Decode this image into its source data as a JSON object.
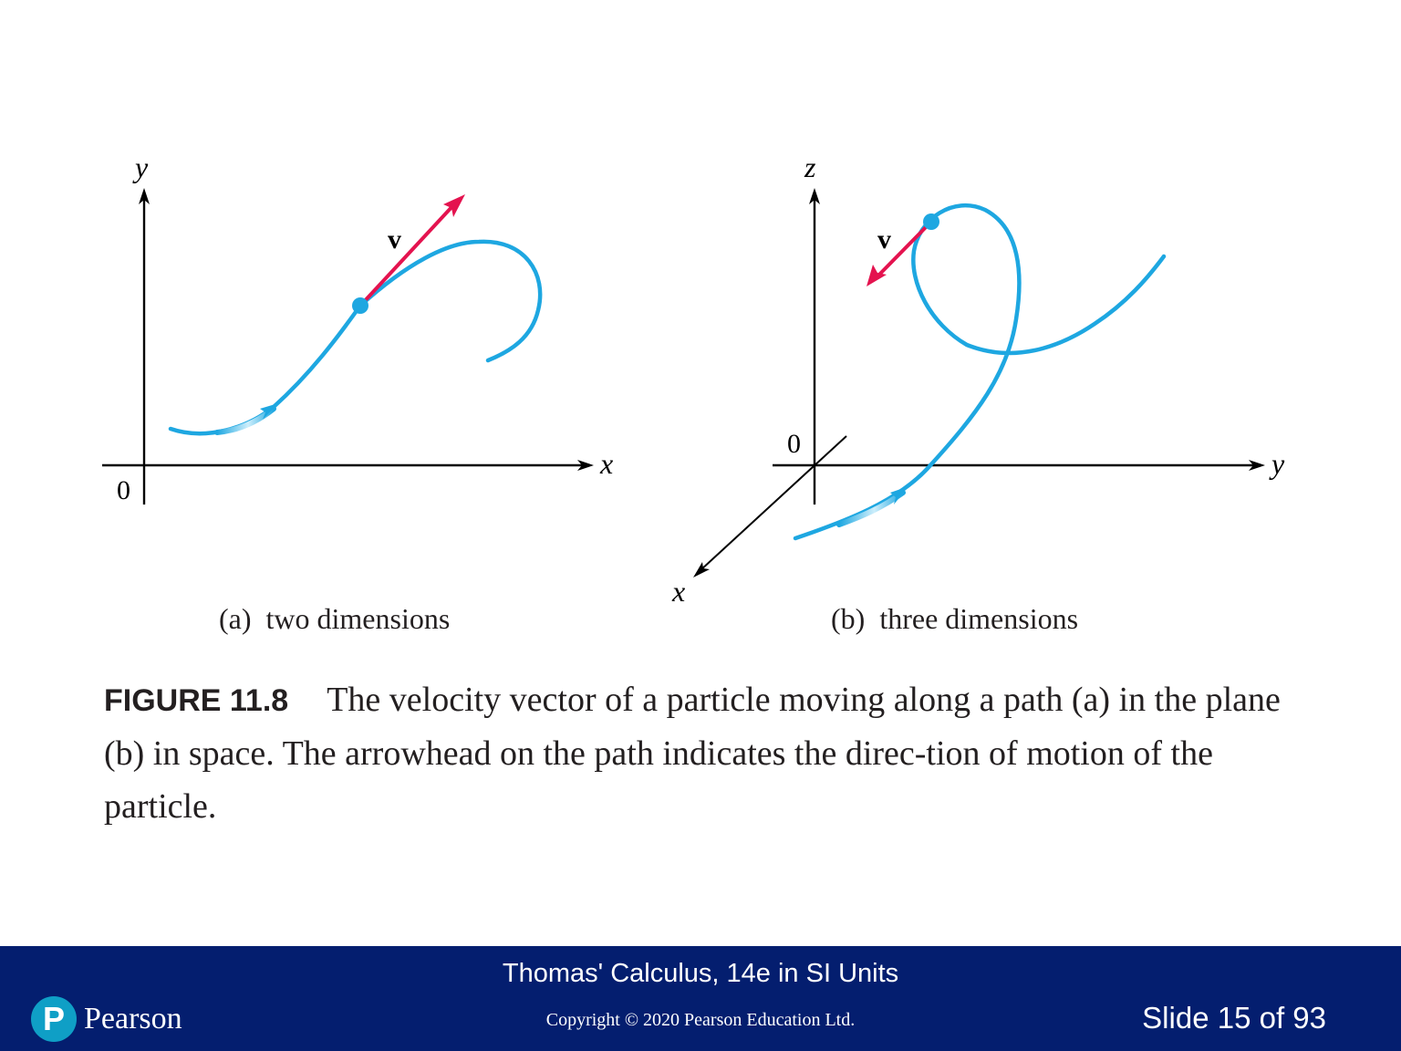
{
  "figure": {
    "panel_a": {
      "y_axis_label": "y",
      "x_axis_label": "x",
      "origin_label": "0",
      "vector_label": "v",
      "caption": "(a)  two dimensions"
    },
    "panel_b": {
      "z_axis_label": "z",
      "y_axis_label": "y",
      "x_axis_label": "x",
      "origin_label": "0",
      "vector_label": "v",
      "caption": "(b)  three dimensions"
    },
    "colors": {
      "path": "#1ea7e1",
      "velocity_vector": "#e4134f",
      "axis": "#000000"
    }
  },
  "caption": {
    "label": "FIGURE 11.8",
    "text": "The velocity vector of a particle moving along a path (a) in the plane (b) in space. The arrowhead on the path indicates the direc-tion of motion of the particle."
  },
  "footer": {
    "title": "Thomas' Calculus, 14e in SI Units",
    "copyright": "Copyright © 2020 Pearson Education Ltd.",
    "slide": "Slide 15 of 93",
    "logo_letter": "P",
    "logo_text": "Pearson",
    "background": "#041e6f"
  }
}
